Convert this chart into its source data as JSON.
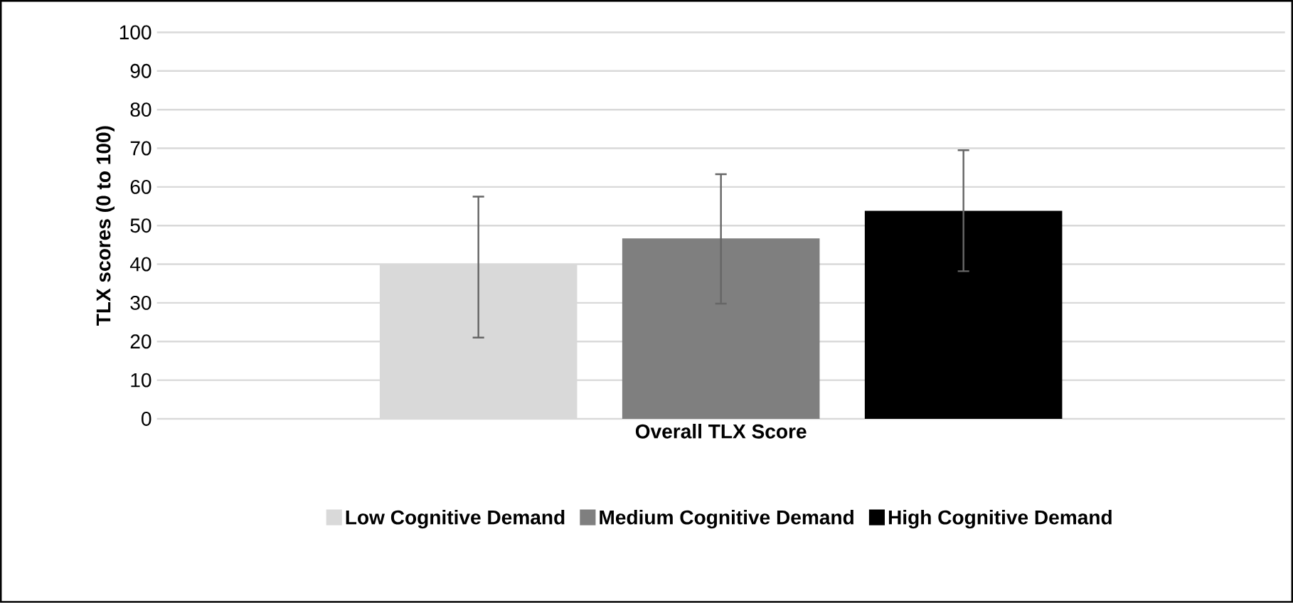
{
  "chart_data": {
    "type": "bar",
    "ylabel": "TLX scores  (0 to 100)",
    "categories": [
      "Overall TLX Score"
    ],
    "series": [
      {
        "name": "Low Cognitive Demand",
        "color": "#d9d9d9",
        "values": [
          40
        ],
        "errors": [
          [
            21,
            57.5
          ]
        ]
      },
      {
        "name": "Medium Cognitive Demand",
        "color": "#7f7f7f",
        "values": [
          46.7
        ],
        "errors": [
          [
            29.8,
            63.3
          ]
        ]
      },
      {
        "name": "High Cognitive Demand",
        "color": "#000000",
        "values": [
          53.8
        ],
        "errors": [
          [
            38.2,
            69.5
          ]
        ]
      }
    ],
    "ylim": [
      0,
      100
    ],
    "yticks": [
      0,
      10,
      20,
      30,
      40,
      50,
      60,
      70,
      80,
      90,
      100
    ],
    "grid": "y",
    "legend": "bottom"
  }
}
